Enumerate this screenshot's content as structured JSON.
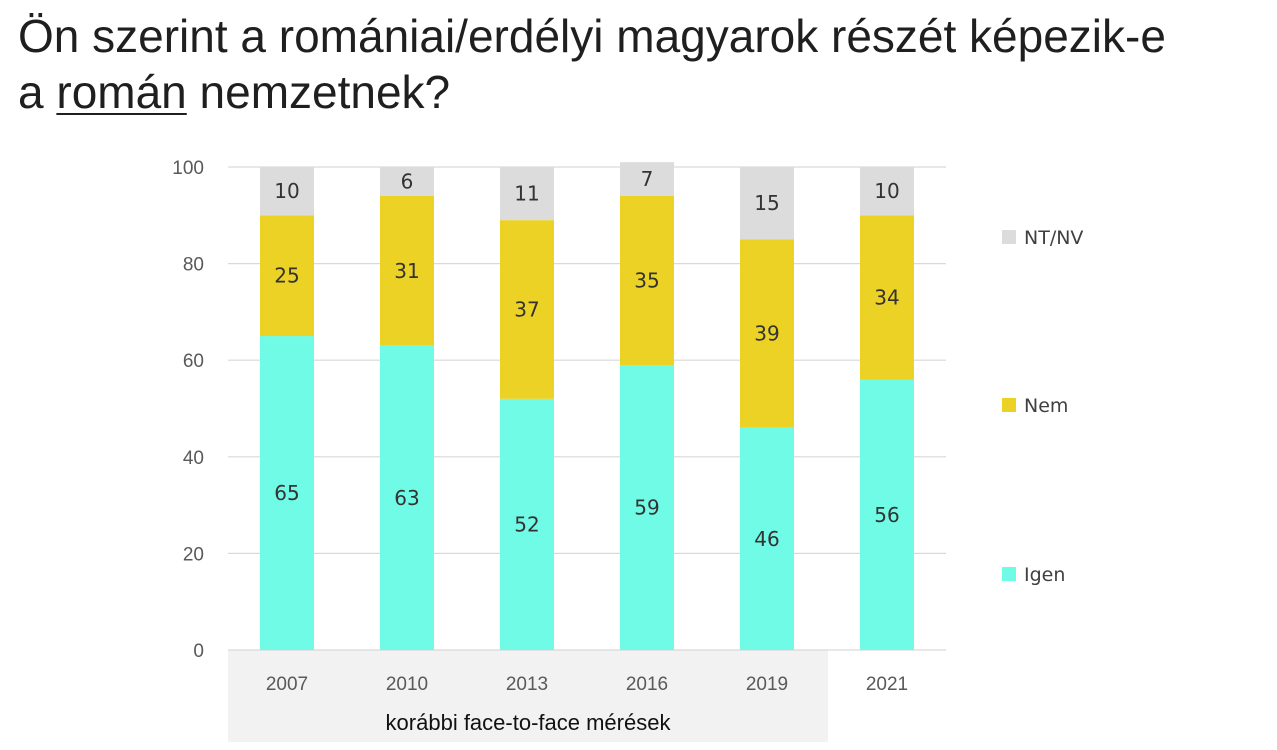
{
  "title": {
    "part1": "Ön szerint a romániai/erdélyi magyarok részét képezik-e",
    "part2": "a",
    "underlined": "román",
    "part3": "nemzetnek?"
  },
  "group_label": "korábbi face-to-face mérések",
  "colors": {
    "igen": "#6ffbe6",
    "nem": "#edd226",
    "ntnv": "#dcdcdc",
    "grid": "#d9d9d9",
    "group_band": "#f2f2f2"
  },
  "chart_data": {
    "type": "bar",
    "stacked": true,
    "categories": [
      "2007",
      "2010",
      "2013",
      "2016",
      "2019",
      "2021"
    ],
    "series": [
      {
        "name": "Igen",
        "values": [
          65,
          63,
          52,
          59,
          46,
          56
        ]
      },
      {
        "name": "Nem",
        "values": [
          25,
          31,
          37,
          35,
          39,
          34
        ]
      },
      {
        "name": "NT/NV",
        "values": [
          10,
          6,
          11,
          7,
          15,
          10
        ]
      }
    ],
    "ylim": [
      0,
      100
    ],
    "yticks": [
      0,
      20,
      40,
      60,
      80,
      100
    ],
    "grid": true,
    "legend_position": "right"
  }
}
